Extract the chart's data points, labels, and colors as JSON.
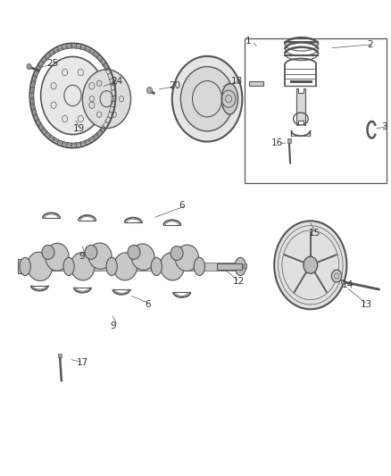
{
  "background_color": "#ffffff",
  "line_color": "#555555",
  "text_color": "#333333",
  "label_fontsize": 7.5,
  "fig_width": 4.38,
  "fig_height": 5.33,
  "dpi": 100
}
